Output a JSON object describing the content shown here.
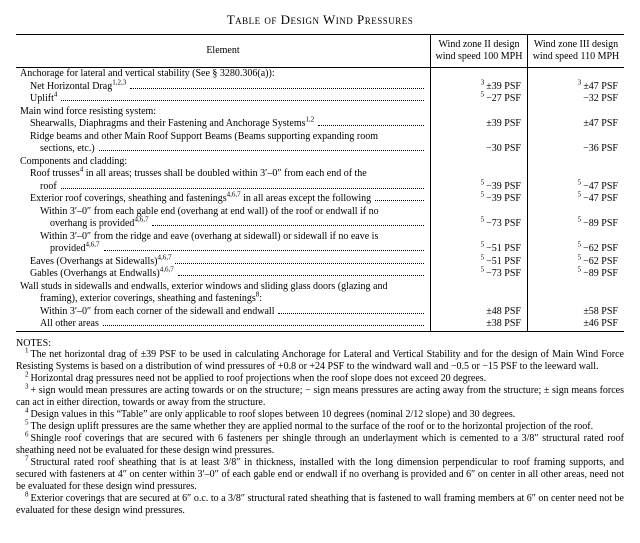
{
  "title": "Table of Design Wind Pressures",
  "headers": {
    "element": "Element",
    "zone2": "Wind zone II design wind speed 100 MPH",
    "zone3": "Wind zone III design wind speed 110 MPH"
  },
  "rows": [
    {
      "indent": 0,
      "text": "Anchorage for lateral and vertical stability (See § 3280.306(a)):",
      "dots": false,
      "v2": "",
      "v3": ""
    },
    {
      "indent": 1,
      "text": "Net Horizontal Drag",
      "sup": "1,2,3",
      "dots": true,
      "v2sup": "3",
      "v2": "±39 PSF",
      "v3sup": "3",
      "v3": "±47 PSF"
    },
    {
      "indent": 1,
      "text": "Uplift",
      "sup": "4",
      "dots": true,
      "v2sup": "5",
      "v2": "−27 PSF",
      "v3": "−32 PSF"
    },
    {
      "indent": 0,
      "text": "Main wind force resisting system:",
      "dots": false,
      "v2": "",
      "v3": ""
    },
    {
      "indent": 1,
      "text": "Shearwalls, Diaphragms and their Fastening and Anchorage Systems",
      "sup": "1,2",
      "dots": true,
      "v2": "±39 PSF",
      "v3": "±47 PSF"
    },
    {
      "indent": 1,
      "text": "Ridge beams and other Main Roof Support Beams (Beams supporting expanding room",
      "dots": false,
      "v2": "",
      "v3": ""
    },
    {
      "indent": 2,
      "text": "sections, etc.)",
      "dots": true,
      "v2": "−30 PSF",
      "v3": "−36 PSF"
    },
    {
      "indent": 0,
      "text": "Components and cladding:",
      "dots": false,
      "v2": "",
      "v3": ""
    },
    {
      "indent": 1,
      "text": "Roof trusses",
      "sup": "4",
      "after": " in all areas; trusses shall be doubled within 3′–0″ from each end of the",
      "dots": false,
      "v2": "",
      "v3": ""
    },
    {
      "indent": 2,
      "text": "roof",
      "dots": true,
      "v2sup": "5",
      "v2": "−39 PSF",
      "v3sup": "5",
      "v3": "−47 PSF"
    },
    {
      "indent": 1,
      "text": "Exterior roof coverings, sheathing and fastenings",
      "sup": "4,6,7",
      "after": " in all areas except the following",
      "dots": true,
      "v2sup": "5",
      "v2": "−39 PSF",
      "v3sup": "5",
      "v3": "−47 PSF"
    },
    {
      "indent": 2,
      "text": "Within 3′–0″ from each gable end (overhang at end wall) of the roof or endwall if no",
      "dots": false,
      "v2": "",
      "v3": ""
    },
    {
      "indent": 3,
      "text": "overhang is provided",
      "sup": "4,6,7",
      "dots": true,
      "v2sup": "5",
      "v2": "−73 PSF",
      "v3sup": "5",
      "v3": "−89 PSF"
    },
    {
      "indent": 2,
      "text": "Within 3′–0″ from the ridge and eave (overhang at sidewall) or sidewall if no eave is",
      "dots": false,
      "v2": "",
      "v3": ""
    },
    {
      "indent": 3,
      "text": "provided",
      "sup": "4,6,7",
      "dots": true,
      "v2sup": "5",
      "v2": "−51 PSF",
      "v3sup": "5",
      "v3": "−62 PSF"
    },
    {
      "indent": 1,
      "text": "Eaves (Overhangs at Sidewalls)",
      "sup": "4,6,7",
      "dots": true,
      "v2sup": "5",
      "v2": "−51 PSF",
      "v3sup": "5",
      "v3": "−62 PSF"
    },
    {
      "indent": 1,
      "text": "Gables (Overhangs at Endwalls)",
      "sup": "4,6,7",
      "dots": true,
      "v2sup": "5",
      "v2": "−73 PSF",
      "v3sup": "5",
      "v3": "−89 PSF"
    },
    {
      "indent": 0,
      "text": "Wall studs in sidewalls and endwalls, exterior windows and sliding glass doors (glazing and",
      "dots": false,
      "v2": "",
      "v3": ""
    },
    {
      "indent": 2,
      "text": "framing), exterior coverings, sheathing and fastenings",
      "sup": "8",
      "after": ":",
      "dots": false,
      "v2": "",
      "v3": ""
    },
    {
      "indent": 2,
      "text": "Within 3′–0″ from each corner of the sidewall and endwall",
      "dots": true,
      "v2": "±48 PSF",
      "v3": "±58 PSF"
    },
    {
      "indent": 2,
      "text": "All other areas",
      "dots": true,
      "v2": "±38 PSF",
      "v3": "±46 PSF"
    }
  ],
  "notes_label": "NOTES:",
  "notes": [
    {
      "n": "1",
      "t": "The net horizontal drag of ±39 PSF to be used in calculating Anchorage for Lateral and Vertical Stability and for the design of Main Wind Force Resisting Systems is based on a distribution of wind pressures of +0.8 or +24 PSF to the windward wall and −0.5 or −15 PSF to the leeward wall."
    },
    {
      "n": "2",
      "t": "Horizontal drag pressures need not be applied to roof projections when the roof slope does not exceed 20 degrees."
    },
    {
      "n": "3",
      "t": "+ sign would mean pressures are acting towards or on the structure; − sign means pressures are acting away from the structure; ± sign means forces can act in either direction, towards or away from the structure."
    },
    {
      "n": "4",
      "t": "Design values in this “Table” are only applicable to roof slopes between 10 degrees (nominal 2/12 slope) and 30 degrees."
    },
    {
      "n": "5",
      "t": "The design uplift pressures are the same whether they are applied normal to the surface of the roof or to the horizontal projection of the roof."
    },
    {
      "n": "6",
      "t": "Shingle roof coverings that are secured with 6 fasteners per shingle through an underlayment which is cemented to a 3/8″ structural rated roof sheathing need not be evaluated for these design wind pressures."
    },
    {
      "n": "7",
      "t": "Structural rated roof sheathing that is at least 3/8″ in thickness, installed with the long dimension perpendicular to roof framing supports, and secured with fasteners at 4″ on center within 3′–0″ of each gable end or endwall if no overhang is provided and 6″ on center in all other areas, need not be evaluated for these design wind pressures."
    },
    {
      "n": "8",
      "t": "Exterior coverings that are secured at 6″ o.c. to a 3/8″ structural rated sheathing that is fastened to wall framing members at 6″ on center need not be evaluated for these design wind pressures."
    }
  ]
}
